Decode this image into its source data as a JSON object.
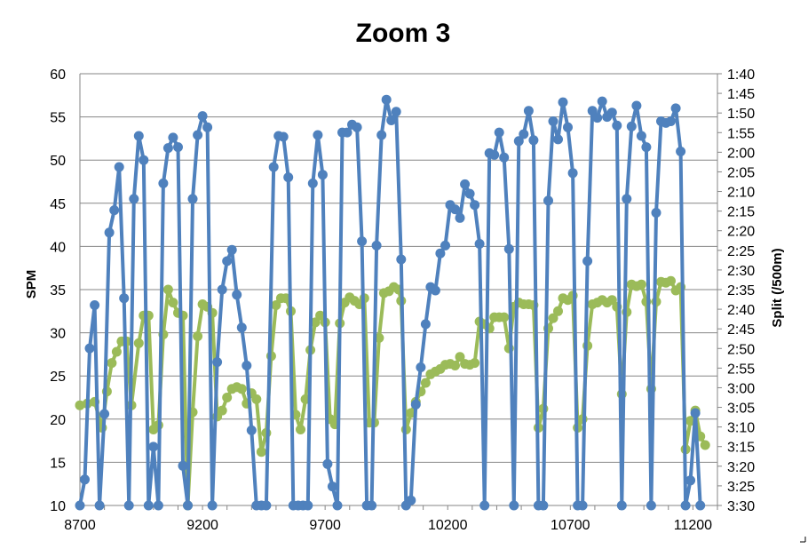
{
  "chart_data": {
    "type": "line",
    "title": "Zoom 3",
    "ylabel": "SPM",
    "y2label": "Split (/500m)",
    "xlim": [
      8700,
      11300
    ],
    "ylim": [
      10,
      60
    ],
    "y2_ticks": [
      "1:40",
      "1:45",
      "1:50",
      "1:55",
      "2:00",
      "2:05",
      "2:10",
      "2:15",
      "2:20",
      "2:25",
      "2:30",
      "2:35",
      "2:40",
      "2:45",
      "2:50",
      "2:55",
      "3:00",
      "3:05",
      "3:10",
      "3:15",
      "3:20",
      "3:25",
      "3:30"
    ],
    "x_ticks": [
      8700,
      9200,
      9700,
      10200,
      10700,
      11200
    ],
    "y_ticks": [
      10,
      15,
      20,
      25,
      30,
      35,
      40,
      45,
      50,
      55,
      60
    ],
    "gridlines": "horizontal",
    "legend": "none",
    "series": [
      {
        "color": "#9bbb59",
        "axis": "left",
        "points": [
          [
            8700,
            21.6
          ],
          [
            8730,
            21.8
          ],
          [
            8760,
            22
          ],
          [
            8790,
            19
          ],
          [
            8810,
            23.2
          ],
          [
            8830,
            26.5
          ],
          [
            8850,
            27.8
          ],
          [
            8870,
            29
          ],
          [
            8890,
            29
          ],
          [
            8910,
            21.6
          ],
          [
            8940,
            28.8
          ],
          [
            8960,
            32
          ],
          [
            8980,
            32
          ],
          [
            9000,
            18.8
          ],
          [
            9020,
            19.3
          ],
          [
            9040,
            29.8
          ],
          [
            9060,
            35
          ],
          [
            9080,
            33.5
          ],
          [
            9100,
            32.3
          ],
          [
            9120,
            32
          ],
          [
            9140,
            10
          ],
          [
            9160,
            20.8
          ],
          [
            9180,
            29.6
          ],
          [
            9200,
            33.3
          ],
          [
            9220,
            33
          ],
          [
            9240,
            32.3
          ],
          [
            9260,
            20.3
          ],
          [
            9280,
            21
          ],
          [
            9300,
            22.5
          ],
          [
            9320,
            23.5
          ],
          [
            9340,
            23.7
          ],
          [
            9360,
            23.5
          ],
          [
            9380,
            21.8
          ],
          [
            9400,
            23
          ],
          [
            9420,
            22.3
          ],
          [
            9440,
            16.2
          ],
          [
            9460,
            18.4
          ],
          [
            9480,
            27.3
          ],
          [
            9500,
            33.2
          ],
          [
            9520,
            34
          ],
          [
            9540,
            34
          ],
          [
            9560,
            32.5
          ],
          [
            9580,
            20.5
          ],
          [
            9600,
            18.8
          ],
          [
            9620,
            22.3
          ],
          [
            9640,
            28
          ],
          [
            9660,
            31.2
          ],
          [
            9680,
            32
          ],
          [
            9700,
            31.2
          ],
          [
            9720,
            20
          ],
          [
            9740,
            19.4
          ],
          [
            9760,
            31.1
          ],
          [
            9780,
            33.5
          ],
          [
            9800,
            34.1
          ],
          [
            9820,
            33.7
          ],
          [
            9840,
            33.3
          ],
          [
            9860,
            34
          ],
          [
            9880,
            19.6
          ],
          [
            9900,
            19.6
          ],
          [
            9920,
            29.4
          ],
          [
            9940,
            34.6
          ],
          [
            9960,
            34.8
          ],
          [
            9980,
            35.3
          ],
          [
            10000,
            35
          ],
          [
            10010,
            33.7
          ],
          [
            10030,
            18.8
          ],
          [
            10050,
            20.7
          ],
          [
            10070,
            22
          ],
          [
            10090,
            23.2
          ],
          [
            10110,
            24.2
          ],
          [
            10130,
            25.2
          ],
          [
            10150,
            25.5
          ],
          [
            10170,
            25.8
          ],
          [
            10190,
            26.3
          ],
          [
            10210,
            26.4
          ],
          [
            10230,
            26.2
          ],
          [
            10250,
            27.2
          ],
          [
            10270,
            26.4
          ],
          [
            10290,
            26.3
          ],
          [
            10310,
            26.5
          ],
          [
            10330,
            31.3
          ],
          [
            10350,
            31
          ],
          [
            10370,
            30.5
          ],
          [
            10390,
            31.8
          ],
          [
            10410,
            31.8
          ],
          [
            10430,
            31.8
          ],
          [
            10450,
            28.2
          ],
          [
            10470,
            33
          ],
          [
            10490,
            33.5
          ],
          [
            10510,
            33.3
          ],
          [
            10530,
            33.3
          ],
          [
            10550,
            33.2
          ],
          [
            10570,
            19
          ],
          [
            10590,
            21.2
          ],
          [
            10610,
            30.5
          ],
          [
            10630,
            31.7
          ],
          [
            10650,
            32.5
          ],
          [
            10670,
            34
          ],
          [
            10690,
            33.8
          ],
          [
            10710,
            34.3
          ],
          [
            10730,
            19
          ],
          [
            10750,
            20
          ],
          [
            10770,
            28.5
          ],
          [
            10790,
            33.3
          ],
          [
            10810,
            33.5
          ],
          [
            10830,
            33.8
          ],
          [
            10850,
            33.5
          ],
          [
            10870,
            33.8
          ],
          [
            10890,
            33
          ],
          [
            10910,
            22.9
          ],
          [
            10930,
            32.4
          ],
          [
            10950,
            35.6
          ],
          [
            10970,
            35.4
          ],
          [
            10990,
            35.6
          ],
          [
            11010,
            33.6
          ],
          [
            11030,
            23.5
          ],
          [
            11050,
            33.6
          ],
          [
            11070,
            35.9
          ],
          [
            11090,
            35.8
          ],
          [
            11110,
            36
          ],
          [
            11130,
            34.9
          ],
          [
            11150,
            35.3
          ],
          [
            11170,
            16.5
          ],
          [
            11190,
            19.8
          ],
          [
            11210,
            21
          ],
          [
            11230,
            18
          ],
          [
            11250,
            17
          ]
        ]
      },
      {
        "color": "#4f81bd",
        "axis": "left",
        "points": [
          [
            8700,
            10
          ],
          [
            8720,
            13
          ],
          [
            8740,
            28.2
          ],
          [
            8760,
            33.2
          ],
          [
            8780,
            10
          ],
          [
            8800,
            20.6
          ],
          [
            8820,
            41.6
          ],
          [
            8840,
            44.2
          ],
          [
            8860,
            49.2
          ],
          [
            8880,
            34
          ],
          [
            8900,
            10
          ],
          [
            8920,
            45.5
          ],
          [
            8940,
            52.8
          ],
          [
            8960,
            50
          ],
          [
            8980,
            10
          ],
          [
            9000,
            16.8
          ],
          [
            9020,
            10
          ],
          [
            9040,
            47.3
          ],
          [
            9060,
            51.4
          ],
          [
            9080,
            52.6
          ],
          [
            9100,
            51.5
          ],
          [
            9120,
            14.6
          ],
          [
            9140,
            10
          ],
          [
            9160,
            45.5
          ],
          [
            9180,
            52.9
          ],
          [
            9200,
            55.1
          ],
          [
            9220,
            53.8
          ],
          [
            9240,
            10
          ],
          [
            9260,
            26.6
          ],
          [
            9280,
            35
          ],
          [
            9300,
            38.3
          ],
          [
            9320,
            39.6
          ],
          [
            9340,
            34.4
          ],
          [
            9360,
            30.6
          ],
          [
            9380,
            26.2
          ],
          [
            9400,
            18.7
          ],
          [
            9420,
            10
          ],
          [
            9440,
            10
          ],
          [
            9460,
            10
          ],
          [
            9490,
            49.2
          ],
          [
            9510,
            52.8
          ],
          [
            9530,
            52.7
          ],
          [
            9550,
            48
          ],
          [
            9570,
            10
          ],
          [
            9590,
            10
          ],
          [
            9610,
            10
          ],
          [
            9630,
            10
          ],
          [
            9650,
            47.3
          ],
          [
            9670,
            52.9
          ],
          [
            9690,
            48.3
          ],
          [
            9710,
            14.8
          ],
          [
            9730,
            12.2
          ],
          [
            9750,
            10
          ],
          [
            9770,
            53.2
          ],
          [
            9790,
            53.2
          ],
          [
            9810,
            54.1
          ],
          [
            9830,
            53.8
          ],
          [
            9850,
            40.6
          ],
          [
            9870,
            10
          ],
          [
            9890,
            10
          ],
          [
            9910,
            40.1
          ],
          [
            9930,
            52.9
          ],
          [
            9950,
            57
          ],
          [
            9970,
            54.6
          ],
          [
            9990,
            55.6
          ],
          [
            10010,
            38.5
          ],
          [
            10030,
            10
          ],
          [
            10050,
            10.6
          ],
          [
            10070,
            21.7
          ],
          [
            10090,
            26
          ],
          [
            10110,
            31
          ],
          [
            10130,
            35.3
          ],
          [
            10150,
            34.9
          ],
          [
            10170,
            39.2
          ],
          [
            10190,
            40.1
          ],
          [
            10210,
            44.8
          ],
          [
            10230,
            44.3
          ],
          [
            10250,
            43.3
          ],
          [
            10270,
            47.2
          ],
          [
            10290,
            46.1
          ],
          [
            10310,
            44.8
          ],
          [
            10330,
            40.3
          ],
          [
            10350,
            10
          ],
          [
            10370,
            50.8
          ],
          [
            10390,
            50.6
          ],
          [
            10410,
            53.2
          ],
          [
            10430,
            50.3
          ],
          [
            10450,
            39.7
          ],
          [
            10470,
            10
          ],
          [
            10490,
            52.2
          ],
          [
            10510,
            53
          ],
          [
            10530,
            55.7
          ],
          [
            10550,
            52.3
          ],
          [
            10570,
            10
          ],
          [
            10590,
            10
          ],
          [
            10610,
            45.3
          ],
          [
            10630,
            54.5
          ],
          [
            10650,
            52.4
          ],
          [
            10670,
            56.7
          ],
          [
            10690,
            53.8
          ],
          [
            10710,
            48.5
          ],
          [
            10730,
            10
          ],
          [
            10750,
            10
          ],
          [
            10770,
            38.3
          ],
          [
            10790,
            55.7
          ],
          [
            10810,
            54.9
          ],
          [
            10830,
            56.8
          ],
          [
            10850,
            55
          ],
          [
            10870,
            55.5
          ],
          [
            10890,
            54
          ],
          [
            10910,
            10
          ],
          [
            10930,
            45.5
          ],
          [
            10950,
            53.9
          ],
          [
            10970,
            56.3
          ],
          [
            10990,
            52.8
          ],
          [
            11010,
            51.5
          ],
          [
            11030,
            10
          ],
          [
            11050,
            43.9
          ],
          [
            11070,
            54.5
          ],
          [
            11090,
            54.3
          ],
          [
            11110,
            54.5
          ],
          [
            11130,
            56
          ],
          [
            11150,
            51
          ],
          [
            11170,
            10
          ],
          [
            11190,
            12.9
          ],
          [
            11210,
            20.7
          ],
          [
            11230,
            10
          ]
        ]
      }
    ]
  }
}
